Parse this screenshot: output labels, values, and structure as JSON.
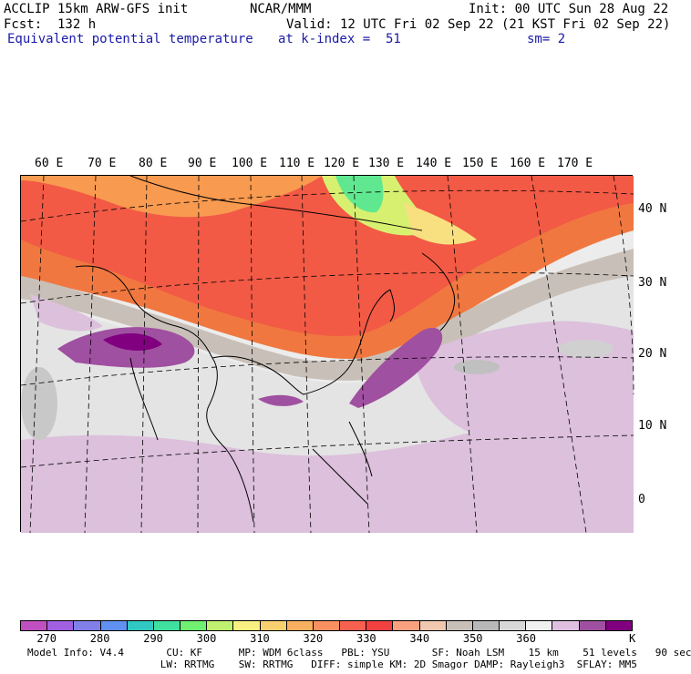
{
  "header": {
    "model_title": "ACCLIP 15km ARW-GFS init",
    "org": "NCAR/MMM",
    "init": "Init: 00 UTC Sun 28 Aug 22",
    "fcst": "Fcst:  132 h",
    "valid": "Valid: 12 UTC Fri 02 Sep 22 (21 KST Fri 02 Sep 22)",
    "field": "Equivalent potential temperature",
    "level": "at k-index =  51",
    "smoothing": "sm= 2"
  },
  "map": {
    "lon_labels": [
      "60 E",
      "70 E",
      "80 E",
      "90 E",
      "100 E",
      "110 E",
      "120 E",
      "130 E",
      "140 E",
      "150 E",
      "160 E",
      "170 E"
    ],
    "lat_labels": [
      "40 N",
      "30 N",
      "20 N",
      "10 N",
      "0"
    ]
  },
  "legend": {
    "colors": [
      "#c050c0",
      "#a060e0",
      "#8080e8",
      "#6090f0",
      "#30c8c0",
      "#40e0a0",
      "#70f070",
      "#c0f070",
      "#f8f080",
      "#f8d070",
      "#f8b060",
      "#f89060",
      "#f86050",
      "#f04040",
      "#f8a080",
      "#f0c8b0",
      "#c8c0b8",
      "#b8b8b8",
      "#d8d8d8",
      "#f0f0f0",
      "#e0c0e0",
      "#a050a0",
      "#800080"
    ],
    "ticks": [
      "270",
      "280",
      "290",
      "300",
      "310",
      "320",
      "330",
      "340",
      "350",
      "360"
    ],
    "unit": "K"
  },
  "model_info": {
    "line1": "Model Info: V4.4       CU: KF      MP: WDM 6class   PBL: YSU       SF: Noah LSM    15 km    51 levels   90 sec",
    "line2": "                      LW: RRTMG    SW: RRTMG   DIFF: simple KM: 2D Smagor DAMP: Rayleigh3  SFLAY: MM5"
  }
}
